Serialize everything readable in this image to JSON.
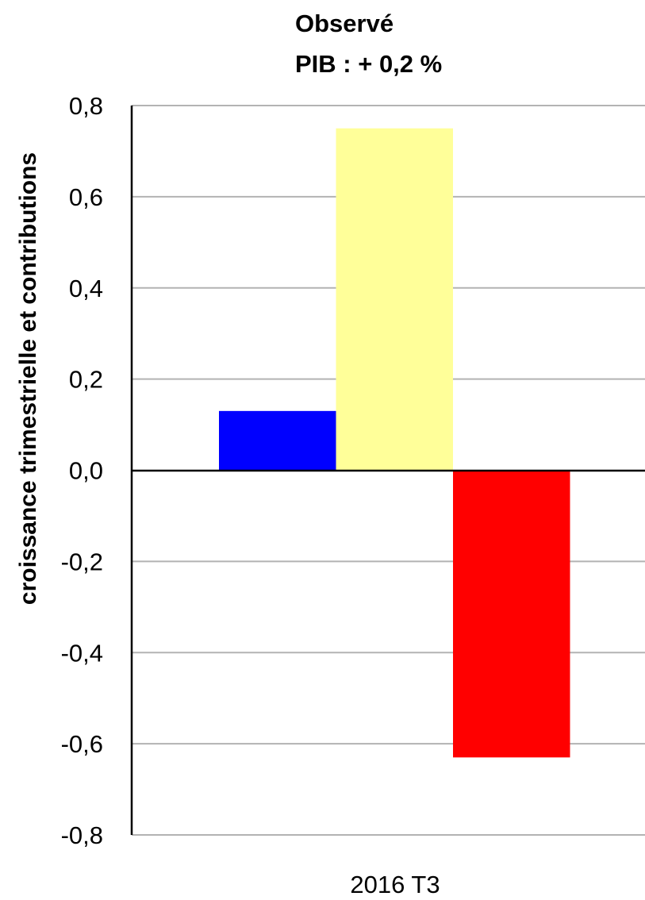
{
  "chart_data": {
    "type": "bar",
    "title": "Observé",
    "subtitle": "PIB : + 0,2 %",
    "xlabel": "",
    "ylabel": "croissance trimestrielle et contributions",
    "categories": [
      "2016 T3"
    ],
    "series": [
      {
        "values": [
          0.13
        ],
        "color": "#0000ff"
      },
      {
        "values": [
          0.75
        ],
        "color": "#ffff99"
      },
      {
        "values": [
          -0.63
        ],
        "color": "#ff0000"
      }
    ],
    "ylim": [
      -0.8,
      0.8
    ],
    "yticks": [
      0.8,
      0.6,
      0.4,
      0.2,
      0.0,
      -0.2,
      -0.4,
      -0.6,
      -0.8
    ],
    "ytick_labels": [
      "0,8",
      "0,6",
      "0,4",
      "0,2",
      "0,0",
      "-0,2",
      "-0,4",
      "-0,6",
      "-0,8"
    ],
    "grid": true,
    "legend": "none"
  }
}
